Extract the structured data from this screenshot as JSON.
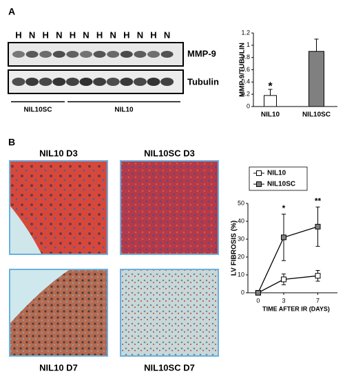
{
  "panels": {
    "a": "A",
    "b": "B"
  },
  "blot": {
    "lanes": [
      "H",
      "N",
      "H",
      "N",
      "H",
      "N",
      "H",
      "N",
      "H",
      "N",
      "H",
      "N"
    ],
    "bands": [
      "MMP-9",
      "Tubulin"
    ],
    "groups": [
      "NIL10SC",
      "NIL10"
    ]
  },
  "images": [
    {
      "title": "NIL10 D3"
    },
    {
      "title": "NIL10SC D3"
    },
    {
      "title": "NIL10 D7"
    },
    {
      "title": "NIL10SC D7"
    }
  ],
  "chart_data": [
    {
      "type": "bar",
      "ylabel": "MMP-9/TUBULIN",
      "categories": [
        "NIL10",
        "NIL10SC"
      ],
      "values": [
        0.18,
        0.9
      ],
      "errors": [
        0.1,
        0.2
      ],
      "colors": [
        "#ffffff",
        "#808080"
      ],
      "ylim": [
        0,
        1.2
      ],
      "yticks": [
        0,
        0.2,
        0.4,
        0.6,
        0.8,
        1,
        1.2
      ],
      "annotations": [
        "*",
        null
      ]
    },
    {
      "type": "line",
      "xlabel": "TIME AFTER IR (DAYS)",
      "ylabel": "LV FIBROSIS  (%)",
      "x": [
        0,
        3,
        7
      ],
      "xlim": [
        -1.2,
        9.3
      ],
      "xticks": [
        0,
        3,
        7
      ],
      "ylim": [
        0,
        50
      ],
      "yticks": [
        0,
        10,
        20,
        30,
        40,
        50
      ],
      "series": [
        {
          "name": "NIL10",
          "color": "#ffffff",
          "values": [
            0,
            7.5,
            9.5
          ],
          "errors": [
            0,
            3,
            3
          ]
        },
        {
          "name": "NIL10SC",
          "color": "#808080",
          "values": [
            0,
            31,
            37
          ],
          "errors": [
            0,
            13,
            11
          ]
        }
      ],
      "annotations": [
        null,
        "*",
        "**"
      ],
      "legend": "top"
    }
  ]
}
